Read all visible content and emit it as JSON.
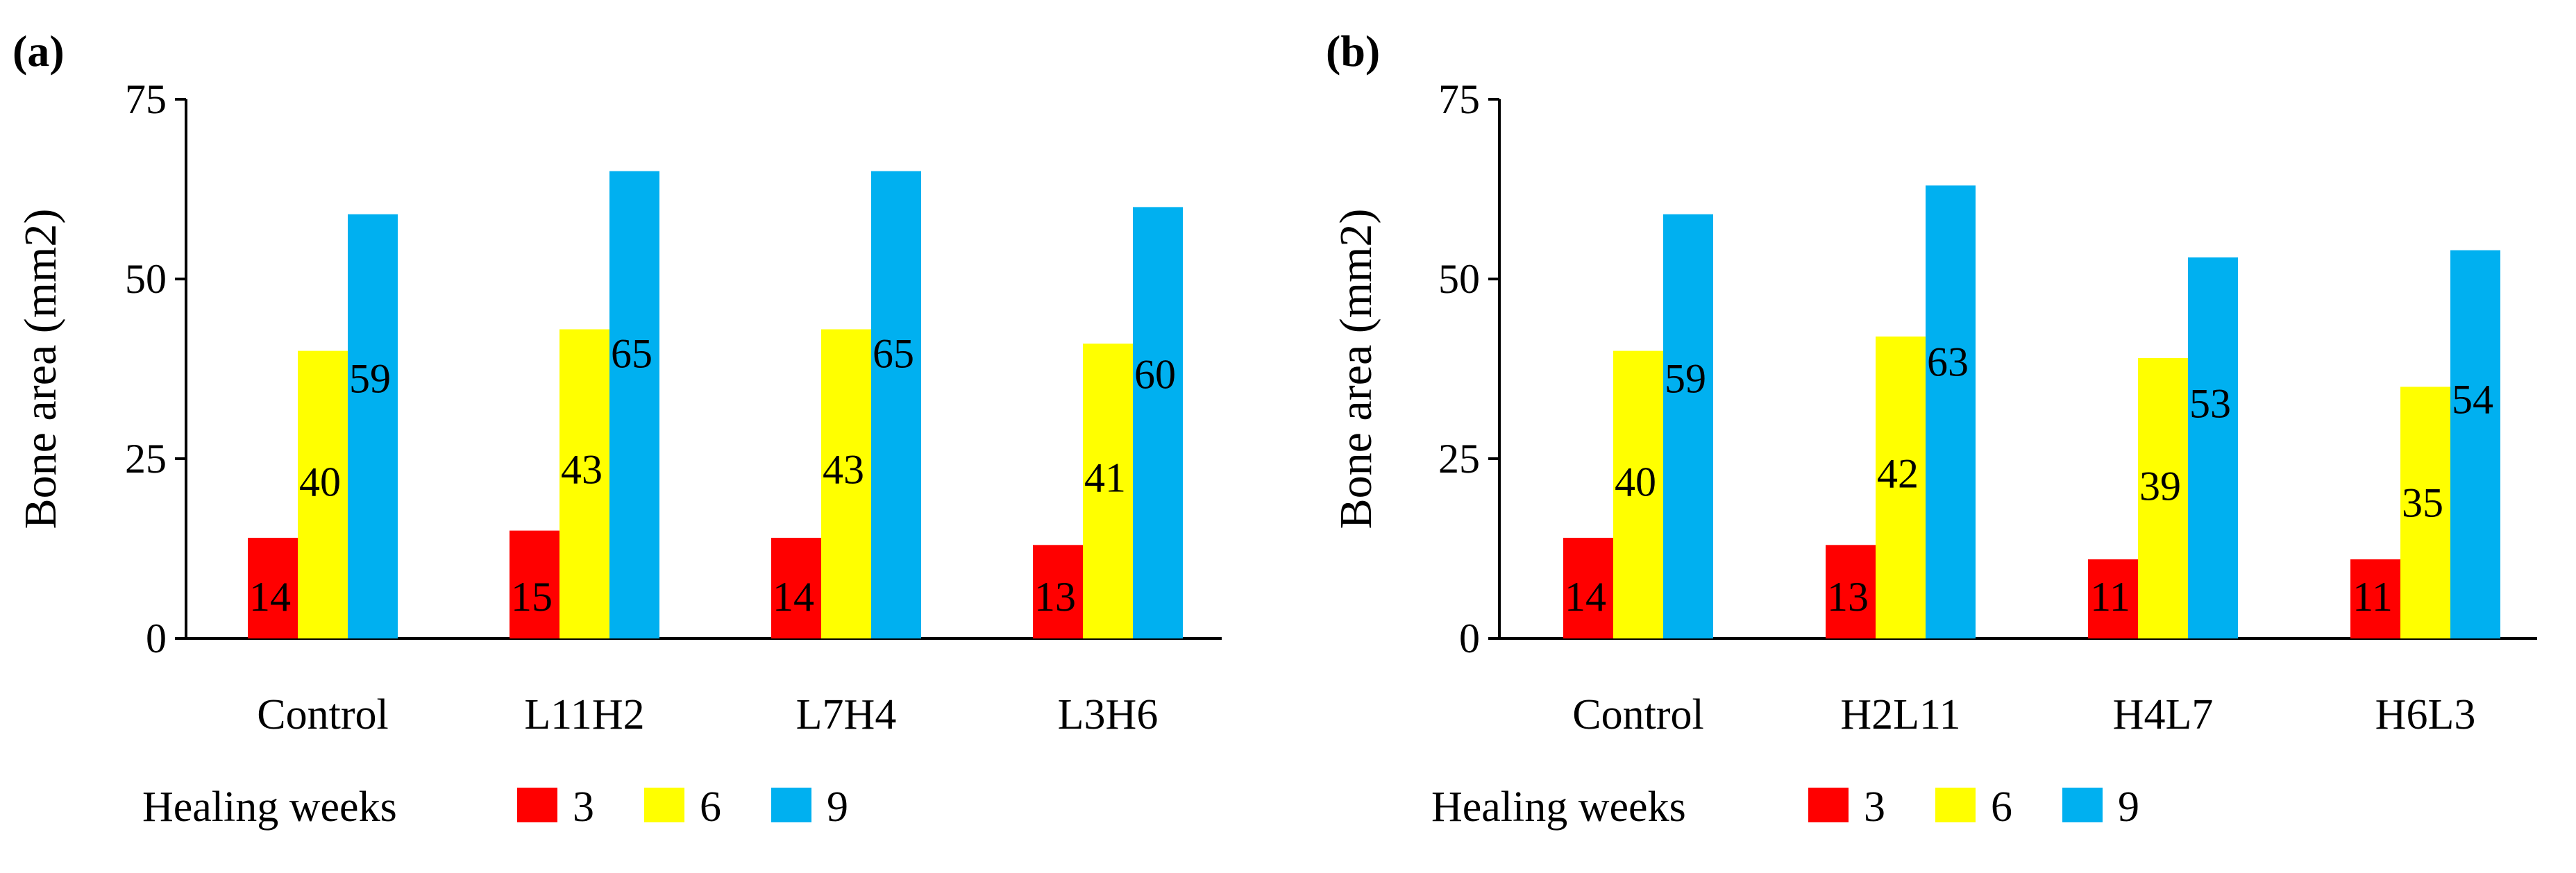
{
  "chart_data": [
    {
      "panel_label": "(a)",
      "type": "bar",
      "ylabel": "Bone area (mm2)",
      "xlabel": "",
      "ylim": [
        0,
        75
      ],
      "yticks": [
        "0",
        "25",
        "50",
        "75"
      ],
      "categories": [
        "Control",
        "L11H2",
        "L7H4",
        "L3H6"
      ],
      "series": [
        {
          "name": "3",
          "color": "#ff0000",
          "values": [
            14,
            15,
            14,
            13
          ],
          "labels": [
            "14",
            "15",
            "14",
            "13"
          ]
        },
        {
          "name": "6",
          "color": "#ffff00",
          "values": [
            40,
            43,
            43,
            41
          ],
          "labels": [
            "40",
            "43",
            "43",
            "41"
          ]
        },
        {
          "name": "9",
          "color": "#00b0f0",
          "values": [
            59,
            65,
            65,
            60
          ],
          "labels": [
            "59",
            "65",
            "65",
            "60"
          ]
        }
      ],
      "legend": {
        "title": "Healing weeks",
        "position": "bottom-left"
      },
      "grid": false
    },
    {
      "panel_label": "(b)",
      "type": "bar",
      "ylabel": "Bone area (mm2)",
      "xlabel": "",
      "ylim": [
        0,
        75
      ],
      "yticks": [
        "0",
        "25",
        "50",
        "75"
      ],
      "categories": [
        "Control",
        "H2L11",
        "H4L7",
        "H6L3"
      ],
      "series": [
        {
          "name": "3",
          "color": "#ff0000",
          "values": [
            14,
            13,
            11,
            11
          ],
          "labels": [
            "14",
            "13",
            "11",
            "11"
          ]
        },
        {
          "name": "6",
          "color": "#ffff00",
          "values": [
            40,
            42,
            39,
            35
          ],
          "labels": [
            "40",
            "42",
            "39",
            "35"
          ]
        },
        {
          "name": "9",
          "color": "#00b0f0",
          "values": [
            59,
            63,
            53,
            54
          ],
          "labels": [
            "59",
            "63",
            "53",
            "54"
          ]
        }
      ],
      "legend": {
        "title": "Healing weeks",
        "position": "bottom-left"
      },
      "grid": false
    }
  ]
}
